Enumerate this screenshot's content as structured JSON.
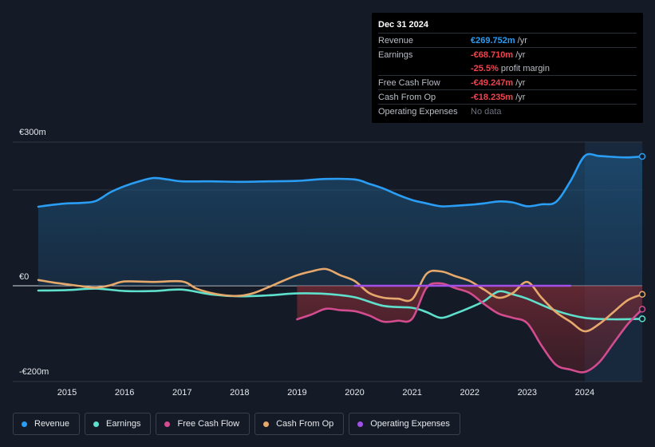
{
  "tooltip": {
    "date": "Dec 31 2024",
    "rows": [
      {
        "label": "Revenue",
        "value": "€269.752m",
        "unit": "/yr"
      },
      {
        "label": "Earnings",
        "value": "-€68.710m",
        "unit": "/yr"
      },
      {
        "label": "",
        "value": "-25.5%",
        "unit": "profit margin"
      },
      {
        "label": "Free Cash Flow",
        "value": "-€49.247m",
        "unit": "/yr"
      },
      {
        "label": "Cash From Op",
        "value": "-€18.235m",
        "unit": "/yr"
      },
      {
        "label": "Operating Expenses",
        "value": "No data",
        "unit": ""
      }
    ]
  },
  "chart_data": {
    "type": "line",
    "ylabel_top": "€300m",
    "ylabel_zero": "€0",
    "ylabel_bottom": "-€200m",
    "ylim": [
      -200,
      300
    ],
    "x_ticks": [
      "2015",
      "2016",
      "2017",
      "2018",
      "2019",
      "2020",
      "2021",
      "2022",
      "2023",
      "2024"
    ],
    "series": [
      {
        "name": "Revenue",
        "color": "#2a9df4",
        "x": [
          2014.5,
          2014.75,
          2015.0,
          2015.25,
          2015.5,
          2015.75,
          2016.0,
          2016.25,
          2016.5,
          2016.75,
          2017.0,
          2017.5,
          2018.0,
          2018.5,
          2019.0,
          2019.5,
          2020.0,
          2020.25,
          2020.5,
          2020.75,
          2021.0,
          2021.25,
          2021.5,
          2021.75,
          2022.0,
          2022.25,
          2022.5,
          2022.75,
          2023.0,
          2023.25,
          2023.5,
          2023.75,
          2024.0,
          2024.25,
          2024.5,
          2024.75,
          2025.0
        ],
        "values": [
          165,
          169,
          172,
          173,
          177,
          195,
          208,
          218,
          225,
          222,
          218,
          218,
          217,
          218,
          219,
          223,
          222,
          213,
          203,
          190,
          179,
          172,
          166,
          167,
          169,
          172,
          176,
          174,
          166,
          170,
          175,
          218,
          271,
          271,
          269,
          268,
          270
        ]
      },
      {
        "name": "Earnings",
        "color": "#5ee0cc",
        "x": [
          2014.5,
          2015.0,
          2015.5,
          2016.0,
          2016.5,
          2017.0,
          2017.5,
          2018.0,
          2018.5,
          2019.0,
          2019.5,
          2020.0,
          2020.5,
          2021.0,
          2021.25,
          2021.5,
          2021.75,
          2022.0,
          2022.25,
          2022.5,
          2022.75,
          2023.0,
          2023.5,
          2024.0,
          2024.5,
          2025.0
        ],
        "values": [
          -10,
          -9,
          -6,
          -11,
          -11,
          -8,
          -18,
          -22,
          -20,
          -16,
          -17,
          -24,
          -42,
          -46,
          -55,
          -67,
          -58,
          -46,
          -32,
          -12,
          -18,
          -27,
          -52,
          -67,
          -70,
          -69
        ]
      },
      {
        "name": "Free Cash Flow",
        "color": "#d24c8f",
        "x": [
          2019.0,
          2019.25,
          2019.5,
          2019.75,
          2020.0,
          2020.25,
          2020.5,
          2020.75,
          2021.0,
          2021.25,
          2021.5,
          2021.75,
          2022.0,
          2022.25,
          2022.5,
          2022.75,
          2023.0,
          2023.25,
          2023.5,
          2023.75,
          2024.0,
          2024.25,
          2024.5,
          2024.75,
          2025.0
        ],
        "values": [
          -70,
          -60,
          -48,
          -51,
          -53,
          -62,
          -75,
          -73,
          -69,
          -4,
          5,
          -5,
          -15,
          -38,
          -58,
          -67,
          -78,
          -125,
          -165,
          -175,
          -180,
          -160,
          -120,
          -80,
          -49
        ]
      },
      {
        "name": "Cash From Op",
        "color": "#e7a96b",
        "x": [
          2014.5,
          2014.75,
          2015.0,
          2015.25,
          2015.5,
          2015.75,
          2016.0,
          2016.5,
          2017.0,
          2017.25,
          2017.5,
          2017.75,
          2018.0,
          2018.25,
          2018.5,
          2018.75,
          2019.0,
          2019.25,
          2019.5,
          2019.75,
          2020.0,
          2020.25,
          2020.5,
          2020.75,
          2021.0,
          2021.25,
          2021.5,
          2021.75,
          2022.0,
          2022.25,
          2022.5,
          2022.75,
          2023.0,
          2023.25,
          2023.5,
          2023.75,
          2024.0,
          2024.25,
          2024.5,
          2024.75,
          2025.0
        ],
        "values": [
          12,
          7,
          3,
          -1,
          -4,
          1,
          9,
          8,
          9,
          -6,
          -15,
          -20,
          -21,
          -15,
          -3,
          10,
          22,
          30,
          35,
          22,
          10,
          -15,
          -25,
          -27,
          -28,
          25,
          30,
          20,
          10,
          -8,
          -25,
          -15,
          8,
          -25,
          -55,
          -75,
          -95,
          -80,
          -55,
          -30,
          -18
        ]
      },
      {
        "name": "Operating Expenses",
        "color": "#a251e8",
        "x": [
          2020.0,
          2023.75
        ],
        "values": [
          0,
          0
        ]
      }
    ]
  },
  "legend": [
    {
      "label": "Revenue",
      "color": "#2a9df4"
    },
    {
      "label": "Earnings",
      "color": "#5ee0cc"
    },
    {
      "label": "Free Cash Flow",
      "color": "#d24c8f"
    },
    {
      "label": "Cash From Op",
      "color": "#e7a96b"
    },
    {
      "label": "Operating Expenses",
      "color": "#a251e8"
    }
  ]
}
